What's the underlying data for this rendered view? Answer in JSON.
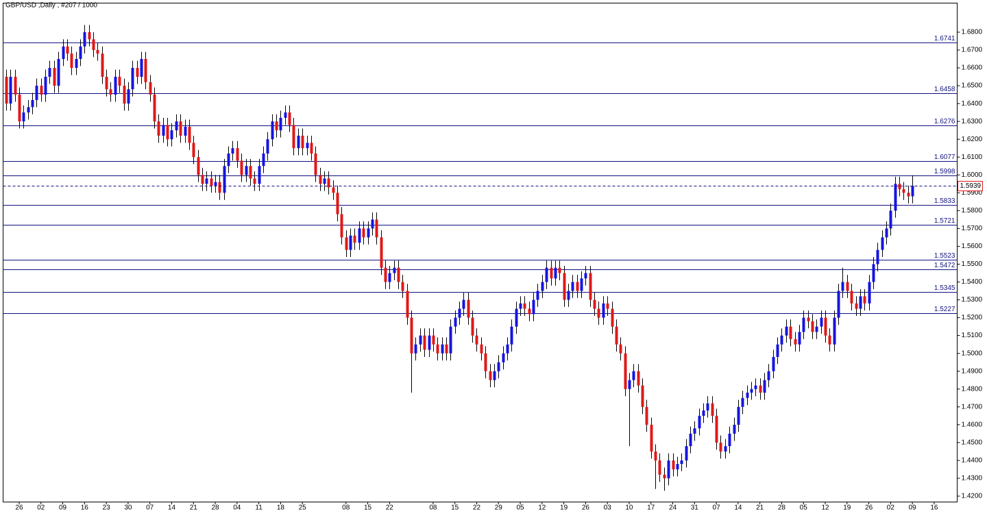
{
  "chart_data": {
    "type": "candlestick",
    "title": "GBP/USD ,Daily , #207 / 1000",
    "categories": [
      null,
      null,
      null,
      "26",
      null,
      null,
      null,
      null,
      "02",
      null,
      null,
      null,
      null,
      "09",
      null,
      null,
      null,
      null,
      "16",
      null,
      null,
      null,
      null,
      "23",
      null,
      null,
      null,
      null,
      "30",
      null,
      null,
      null,
      null,
      "07",
      null,
      null,
      null,
      null,
      "14",
      null,
      null,
      null,
      null,
      "21",
      null,
      null,
      null,
      null,
      "28",
      null,
      null,
      null,
      null,
      "04",
      null,
      null,
      null,
      null,
      "11",
      null,
      null,
      null,
      null,
      "18",
      null,
      null,
      null,
      null,
      "25",
      null,
      null,
      null,
      null,
      null,
      null,
      null,
      null,
      null,
      "08",
      null,
      null,
      null,
      null,
      "15",
      null,
      null,
      null,
      null,
      "22",
      null,
      null,
      null,
      null,
      null,
      null,
      null,
      null,
      null,
      "08",
      null,
      null,
      null,
      null,
      "15",
      null,
      null,
      null,
      null,
      "22",
      null,
      null,
      null,
      null,
      "29",
      null,
      null,
      null,
      null,
      "05",
      null,
      null,
      null,
      null,
      "12",
      null,
      null,
      null,
      null,
      "19",
      null,
      null,
      null,
      null,
      "26",
      null,
      null,
      null,
      null,
      "03",
      null,
      null,
      null,
      null,
      "10",
      null,
      null,
      null,
      null,
      "17",
      null,
      null,
      null,
      null,
      "24",
      null,
      null,
      null,
      null,
      "31",
      null,
      null,
      null,
      null,
      "07",
      null,
      null,
      null,
      null,
      "14",
      null,
      null,
      null,
      null,
      "21",
      null,
      null,
      null,
      null,
      "28",
      null,
      null,
      null,
      null,
      "05",
      null,
      null,
      null,
      null,
      "12",
      null,
      null,
      null,
      null,
      "19",
      null,
      null,
      null,
      null,
      "26",
      null,
      null,
      null,
      null,
      "02",
      null,
      null,
      null,
      null,
      "09",
      null,
      null,
      null,
      null,
      "16"
    ],
    "open": [
      1.655,
      1.64,
      1.655,
      1.645,
      1.63,
      1.635,
      1.638,
      1.642,
      1.65,
      1.645,
      1.655,
      1.66,
      1.65,
      1.665,
      1.672,
      1.668,
      1.66,
      1.665,
      1.672,
      1.68,
      1.676,
      1.67,
      1.668,
      1.655,
      1.648,
      1.645,
      1.655,
      1.65,
      1.64,
      1.648,
      1.66,
      1.655,
      1.665,
      1.652,
      1.645,
      1.63,
      1.622,
      1.628,
      1.62,
      1.625,
      1.63,
      1.622,
      1.627,
      1.618,
      1.61,
      1.6,
      1.595,
      1.598,
      1.594,
      1.596,
      1.59,
      1.605,
      1.612,
      1.615,
      1.608,
      1.6,
      1.605,
      1.598,
      1.595,
      1.605,
      1.612,
      1.62,
      1.63,
      1.625,
      1.632,
      1.635,
      1.628,
      1.615,
      1.622,
      1.615,
      1.618,
      1.612,
      1.6,
      1.595,
      1.598,
      1.593,
      1.59,
      1.578,
      1.565,
      1.558,
      1.566,
      1.562,
      1.57,
      1.565,
      1.57,
      1.575,
      1.565,
      1.548,
      1.54,
      1.545,
      1.548,
      1.54,
      1.535,
      1.52,
      1.5,
      1.505,
      1.51,
      1.502,
      1.51,
      1.505,
      1.5,
      1.505,
      1.5,
      1.515,
      1.52,
      1.525,
      1.53,
      1.52,
      1.51,
      1.505,
      1.5,
      1.49,
      1.485,
      1.49,
      1.495,
      1.5,
      1.505,
      1.515,
      1.525,
      1.528,
      1.525,
      1.522,
      1.53,
      1.535,
      1.54,
      1.548,
      1.542,
      1.548,
      1.545,
      1.53,
      1.535,
      1.54,
      1.535,
      1.542,
      1.545,
      1.53,
      1.525,
      1.52,
      1.528,
      1.525,
      1.515,
      1.505,
      1.5,
      1.48,
      1.485,
      1.49,
      1.482,
      1.47,
      1.46,
      1.445,
      1.44,
      1.432,
      1.43,
      1.44,
      1.435,
      1.438,
      1.44,
      1.448,
      1.455,
      1.458,
      1.465,
      1.468,
      1.472,
      1.465,
      1.45,
      1.445,
      1.448,
      1.455,
      1.46,
      1.47,
      1.475,
      1.478,
      1.48,
      1.482,
      1.478,
      1.485,
      1.49,
      1.498,
      1.505,
      1.51,
      1.515,
      1.508,
      1.505,
      1.512,
      1.52,
      1.518,
      1.512,
      1.515,
      1.52,
      1.51,
      1.505,
      1.52,
      1.535,
      1.54,
      1.535,
      1.528,
      1.525,
      1.532,
      1.528,
      1.54,
      1.55,
      1.558,
      1.565,
      1.57,
      1.58,
      1.595,
      1.592,
      1.59,
      1.588,
      null,
      null,
      null,
      null,
      null
    ],
    "high": [
      1.659,
      1.659,
      1.659,
      1.649,
      1.639,
      1.642,
      1.646,
      1.654,
      1.654,
      1.659,
      1.664,
      1.664,
      1.669,
      1.676,
      1.676,
      1.672,
      1.669,
      1.676,
      1.684,
      1.684,
      1.68,
      1.674,
      1.672,
      1.659,
      1.652,
      1.659,
      1.659,
      1.654,
      1.652,
      1.664,
      1.664,
      1.669,
      1.669,
      1.656,
      1.649,
      1.634,
      1.632,
      1.632,
      1.629,
      1.634,
      1.634,
      1.631,
      1.631,
      1.622,
      1.614,
      1.604,
      1.602,
      1.602,
      1.6,
      1.6,
      1.609,
      1.616,
      1.619,
      1.619,
      1.612,
      1.609,
      1.609,
      1.602,
      1.609,
      1.616,
      1.624,
      1.634,
      1.634,
      1.636,
      1.639,
      1.639,
      1.632,
      1.626,
      1.626,
      1.622,
      1.622,
      1.616,
      1.604,
      1.602,
      1.602,
      1.597,
      1.594,
      1.582,
      1.569,
      1.57,
      1.57,
      1.574,
      1.574,
      1.574,
      1.579,
      1.579,
      1.569,
      1.552,
      1.549,
      1.552,
      1.552,
      1.544,
      1.539,
      1.524,
      1.509,
      1.514,
      1.514,
      1.514,
      1.514,
      1.509,
      1.509,
      1.509,
      1.519,
      1.524,
      1.529,
      1.534,
      1.534,
      1.524,
      1.514,
      1.509,
      1.504,
      1.494,
      1.494,
      1.499,
      1.504,
      1.509,
      1.519,
      1.529,
      1.532,
      1.532,
      1.529,
      1.534,
      1.539,
      1.544,
      1.552,
      1.552,
      1.552,
      1.552,
      1.549,
      1.539,
      1.544,
      1.544,
      1.546,
      1.549,
      1.549,
      1.534,
      1.529,
      1.532,
      1.532,
      1.529,
      1.519,
      1.509,
      1.504,
      1.489,
      1.494,
      1.494,
      1.486,
      1.474,
      1.464,
      1.449,
      1.444,
      1.436,
      1.444,
      1.444,
      1.442,
      1.444,
      1.452,
      1.459,
      1.462,
      1.469,
      1.472,
      1.476,
      1.476,
      1.469,
      1.454,
      1.452,
      1.459,
      1.464,
      1.474,
      1.479,
      1.482,
      1.484,
      1.486,
      1.486,
      1.489,
      1.494,
      1.502,
      1.509,
      1.514,
      1.519,
      1.519,
      1.512,
      1.516,
      1.524,
      1.524,
      1.522,
      1.519,
      1.524,
      1.524,
      1.514,
      1.524,
      1.539,
      1.548,
      1.544,
      1.539,
      1.532,
      1.536,
      1.536,
      1.544,
      1.554,
      1.562,
      1.569,
      1.574,
      1.584,
      1.599,
      1.599,
      1.596,
      1.594,
      1.5998,
      null,
      null,
      null,
      null,
      null
    ],
    "low": [
      1.636,
      1.636,
      1.641,
      1.626,
      1.626,
      1.631,
      1.634,
      1.638,
      1.641,
      1.641,
      1.651,
      1.646,
      1.646,
      1.661,
      1.664,
      1.656,
      1.656,
      1.661,
      1.668,
      1.672,
      1.666,
      1.664,
      1.651,
      1.644,
      1.641,
      1.641,
      1.646,
      1.636,
      1.636,
      1.644,
      1.651,
      1.651,
      1.648,
      1.641,
      1.626,
      1.618,
      1.618,
      1.616,
      1.616,
      1.621,
      1.618,
      1.618,
      1.614,
      1.606,
      1.596,
      1.591,
      1.591,
      1.59,
      1.59,
      1.586,
      1.586,
      1.601,
      1.608,
      1.604,
      1.596,
      1.596,
      1.594,
      1.591,
      1.591,
      1.601,
      1.608,
      1.616,
      1.621,
      1.621,
      1.628,
      1.624,
      1.611,
      1.611,
      1.611,
      1.611,
      1.608,
      1.596,
      1.591,
      1.591,
      1.589,
      1.586,
      1.574,
      1.561,
      1.554,
      1.554,
      1.558,
      1.558,
      1.561,
      1.561,
      1.566,
      1.561,
      1.544,
      1.536,
      1.536,
      1.541,
      1.536,
      1.531,
      1.516,
      1.478,
      1.496,
      1.501,
      1.498,
      1.498,
      1.501,
      1.496,
      1.496,
      1.496,
      1.496,
      1.511,
      1.516,
      1.521,
      1.516,
      1.506,
      1.501,
      1.496,
      1.486,
      1.481,
      1.481,
      1.486,
      1.491,
      1.496,
      1.501,
      1.511,
      1.521,
      1.521,
      1.518,
      1.518,
      1.526,
      1.531,
      1.536,
      1.538,
      1.538,
      1.541,
      1.526,
      1.526,
      1.531,
      1.531,
      1.531,
      1.538,
      1.526,
      1.521,
      1.516,
      1.516,
      1.521,
      1.511,
      1.501,
      1.496,
      1.476,
      1.448,
      1.481,
      1.478,
      1.466,
      1.456,
      1.441,
      1.424,
      1.428,
      1.423,
      1.426,
      1.431,
      1.431,
      1.434,
      1.436,
      1.444,
      1.451,
      1.454,
      1.461,
      1.464,
      1.461,
      1.446,
      1.441,
      1.441,
      1.444,
      1.451,
      1.456,
      1.466,
      1.471,
      1.474,
      1.476,
      1.474,
      1.474,
      1.481,
      1.486,
      1.494,
      1.501,
      1.506,
      1.504,
      1.501,
      1.501,
      1.508,
      1.514,
      1.508,
      1.508,
      1.511,
      1.506,
      1.501,
      1.501,
      1.516,
      1.531,
      1.531,
      1.524,
      1.521,
      1.521,
      1.524,
      1.524,
      1.536,
      1.546,
      1.554,
      1.561,
      1.566,
      1.576,
      1.588,
      1.586,
      1.584,
      1.584,
      null,
      null,
      null,
      null,
      null
    ],
    "close": [
      1.64,
      1.655,
      1.645,
      1.63,
      1.635,
      1.638,
      1.642,
      1.65,
      1.645,
      1.655,
      1.66,
      1.65,
      1.665,
      1.672,
      1.668,
      1.66,
      1.665,
      1.672,
      1.68,
      1.676,
      1.67,
      1.668,
      1.655,
      1.648,
      1.645,
      1.655,
      1.65,
      1.64,
      1.648,
      1.66,
      1.655,
      1.665,
      1.652,
      1.645,
      1.63,
      1.622,
      1.628,
      1.62,
      1.625,
      1.63,
      1.622,
      1.627,
      1.618,
      1.61,
      1.6,
      1.595,
      1.598,
      1.594,
      1.596,
      1.59,
      1.605,
      1.612,
      1.615,
      1.608,
      1.6,
      1.605,
      1.598,
      1.595,
      1.605,
      1.612,
      1.62,
      1.63,
      1.625,
      1.632,
      1.635,
      1.628,
      1.615,
      1.622,
      1.615,
      1.618,
      1.612,
      1.6,
      1.595,
      1.598,
      1.593,
      1.59,
      1.578,
      1.565,
      1.558,
      1.566,
      1.562,
      1.57,
      1.565,
      1.57,
      1.575,
      1.565,
      1.548,
      1.54,
      1.545,
      1.548,
      1.54,
      1.535,
      1.52,
      1.5,
      1.505,
      1.51,
      1.502,
      1.51,
      1.505,
      1.5,
      1.505,
      1.5,
      1.515,
      1.52,
      1.525,
      1.53,
      1.52,
      1.51,
      1.505,
      1.5,
      1.49,
      1.485,
      1.49,
      1.495,
      1.5,
      1.505,
      1.515,
      1.525,
      1.528,
      1.525,
      1.522,
      1.53,
      1.535,
      1.54,
      1.548,
      1.542,
      1.548,
      1.545,
      1.53,
      1.535,
      1.54,
      1.535,
      1.542,
      1.545,
      1.53,
      1.525,
      1.52,
      1.528,
      1.525,
      1.515,
      1.505,
      1.5,
      1.48,
      1.485,
      1.49,
      1.482,
      1.47,
      1.46,
      1.445,
      1.44,
      1.432,
      1.43,
      1.44,
      1.435,
      1.438,
      1.44,
      1.448,
      1.455,
      1.458,
      1.465,
      1.468,
      1.472,
      1.465,
      1.45,
      1.445,
      1.448,
      1.455,
      1.46,
      1.47,
      1.475,
      1.478,
      1.48,
      1.482,
      1.478,
      1.485,
      1.49,
      1.498,
      1.505,
      1.51,
      1.515,
      1.508,
      1.505,
      1.512,
      1.52,
      1.518,
      1.512,
      1.515,
      1.52,
      1.51,
      1.505,
      1.52,
      1.535,
      1.54,
      1.535,
      1.528,
      1.525,
      1.532,
      1.528,
      1.54,
      1.55,
      1.558,
      1.565,
      1.57,
      1.58,
      1.595,
      1.592,
      1.59,
      1.588,
      1.5939,
      null,
      null,
      null,
      null,
      null
    ],
    "up_color": "#1515e0",
    "down_color": "#e01818",
    "wick_color": "#000000",
    "level_color": "#101080",
    "last_color": "#e01818",
    "levels": [
      1.6741,
      1.6458,
      1.6276,
      1.6077,
      1.5998,
      1.5833,
      1.5721,
      1.5523,
      1.5472,
      1.5345,
      1.5227
    ],
    "ylim": [
      1.4169,
      1.6965
    ],
    "yticks": [
      {
        "value": 1.68,
        "label": "1.6800"
      },
      {
        "value": 1.67,
        "label": "1.6700"
      },
      {
        "value": 1.66,
        "label": "1.6600"
      },
      {
        "value": 1.65,
        "label": "1.6500"
      },
      {
        "value": 1.64,
        "label": "1.6400"
      },
      {
        "value": 1.63,
        "label": "1.6300"
      },
      {
        "value": 1.62,
        "label": "1.6200"
      },
      {
        "value": 1.61,
        "label": "1.6100"
      },
      {
        "value": 1.6,
        "label": "1.6000"
      },
      {
        "value": 1.59,
        "label": "1.5900"
      },
      {
        "value": 1.58,
        "label": "1.5800"
      },
      {
        "value": 1.57,
        "label": "1.5700"
      },
      {
        "value": 1.56,
        "label": "1.5600"
      },
      {
        "value": 1.55,
        "label": "1.5500"
      },
      {
        "value": 1.54,
        "label": "1.5400"
      },
      {
        "value": 1.53,
        "label": "1.5300"
      },
      {
        "value": 1.52,
        "label": "1.5200"
      },
      {
        "value": 1.51,
        "label": "1.5100"
      },
      {
        "value": 1.5,
        "label": "1.5000"
      },
      {
        "value": 1.49,
        "label": "1.4900"
      },
      {
        "value": 1.48,
        "label": "1.4800"
      },
      {
        "value": 1.47,
        "label": "1.4700"
      },
      {
        "value": 1.46,
        "label": "1.4600"
      },
      {
        "value": 1.45,
        "label": "1.4500"
      },
      {
        "value": 1.44,
        "label": "1.4400"
      },
      {
        "value": 1.43,
        "label": "1.4300"
      },
      {
        "value": 1.42,
        "label": "1.4200"
      }
    ]
  }
}
